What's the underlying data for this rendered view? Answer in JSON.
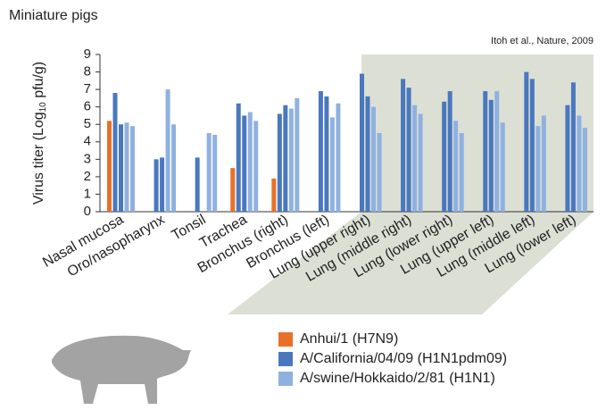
{
  "chart_data": {
    "type": "bar",
    "title": "Miniature pigs",
    "annotation": "Itoh et al., Nature, 2009",
    "ylabel": {
      "text": "Virus titer (Log",
      "subscript": "10",
      "unit": " pfu/g)"
    },
    "categories": [
      "Nasal mucosa",
      "Oro/nasopharynx",
      "Tonsil",
      "Trachea",
      "Bronchus (right)",
      "Bronchus (left)",
      "Lung (upper right)",
      "Lung (middle right)",
      "Lung (lower right)",
      "Lung (upper left)",
      "Lung (middle left)",
      "Lung (lower left)"
    ],
    "series": [
      {
        "name": "Anhui/1 (H7N9)",
        "color": "#e8712a",
        "values": [
          [
            5.2
          ],
          [
            null
          ],
          [
            null
          ],
          [
            2.5
          ],
          [
            1.9
          ],
          [
            null
          ],
          [
            null
          ],
          [
            null
          ],
          [
            null
          ],
          [
            null
          ],
          [
            null
          ],
          [
            null
          ]
        ]
      },
      {
        "name": "A/California/04/09 (H1N1pdm09)",
        "color": "#4a78be",
        "values": [
          [
            6.8,
            5.0
          ],
          [
            3.0,
            3.1
          ],
          [
            3.1,
            null
          ],
          [
            6.2,
            5.5
          ],
          [
            5.6,
            6.1
          ],
          [
            6.9,
            6.6
          ],
          [
            7.9,
            6.6
          ],
          [
            7.6,
            7.1
          ],
          [
            6.3,
            6.9
          ],
          [
            6.9,
            6.4
          ],
          [
            8.0,
            7.6
          ],
          [
            6.1,
            7.4
          ]
        ]
      },
      {
        "name": "A/swine/Hokkaido/2/81 (H1N1)",
        "color": "#8fb1e0",
        "values": [
          [
            5.1,
            4.9
          ],
          [
            7.0,
            5.0
          ],
          [
            4.5,
            4.4
          ],
          [
            5.7,
            5.2
          ],
          [
            5.9,
            6.5
          ],
          [
            5.4,
            6.2
          ],
          [
            6.0,
            4.5
          ],
          [
            6.1,
            5.6
          ],
          [
            5.2,
            4.5
          ],
          [
            6.9,
            5.1
          ],
          [
            4.9,
            5.5
          ],
          [
            5.5,
            4.8
          ]
        ]
      }
    ],
    "ylim": [
      0,
      9
    ],
    "yticks": [
      0,
      1,
      2,
      3,
      4,
      5,
      6,
      7,
      8,
      9
    ]
  }
}
